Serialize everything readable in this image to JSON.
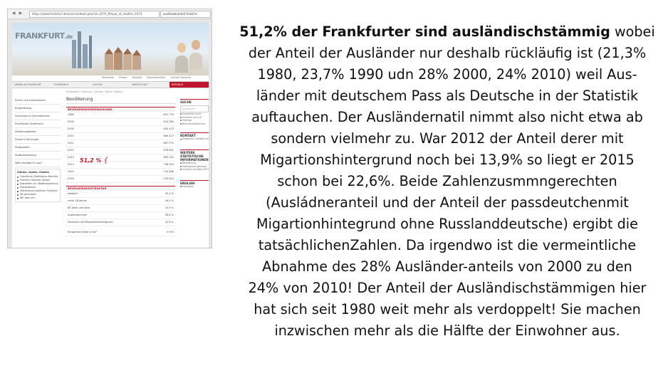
{
  "browser": {
    "url": "https://www.frankfurt.de/sixcms/detail.php?id=2076_ffmpar_id_stadtrt=1074",
    "search_tab": "ausländeranteil frankf ▾",
    "nav_back": "◀",
    "nav_forward": "▶"
  },
  "site": {
    "logo_text": "FRANKFURT",
    "logo_suffix": ".de",
    "top_links": [
      "Startseite",
      "Presse",
      "Kontakt",
      "Barrierefreiheit",
      "Leichte Sprache"
    ],
    "main_nav": [
      {
        "label": "LEBEN IN FRANKFURT",
        "active": false
      },
      {
        "label": "TOURISMUS",
        "active": false
      },
      {
        "label": "KULTUR",
        "active": false
      },
      {
        "label": "WIRTSCHAFT",
        "active": false
      },
      {
        "label": "RATHAUS",
        "active": true
      }
    ],
    "breadcrumb": "Startseite » Rathaus » Zahlen, Daten, Fakten",
    "left_nav": [
      "Ämter und Institutionen",
      "Bürgerdialog",
      "Formulare & Onlinedienste",
      "Frankfurter Stadtrecht",
      "Stellenangebote",
      "Preise & Ehrungen",
      "Stadtpolitik",
      "Stadtverwaltung",
      "Was erledige ich wo?"
    ],
    "left_sub": {
      "title": "Zahlen, Daten, Fakten",
      "items": [
        "Frankfurter Statistische Berichte",
        "Frankfurt Statistik Aktuell",
        "Statistiken zur Stadtentwicklung",
        "Publikationen",
        "Statistisches Jahrbuch Frankfurt am Main",
        "Strukturdaten",
        "Wir über uns"
      ]
    },
    "content": {
      "title": "Bevölkerung",
      "section1_title": "BEVÖLKERUNGSENTWICKLUNG",
      "population": [
        {
          "year": "1980",
          "value": "631 779"
        },
        {
          "year": "2000",
          "value": "624 380"
        },
        {
          "year": "2005",
          "value": "630 423"
        },
        {
          "year": "2010",
          "value": "660 427"
        },
        {
          "year": "2011",
          "value": "667 575"
        },
        {
          "year": "2012",
          "value": "678 691"
        },
        {
          "year": "2013",
          "value": "693 342"
        },
        {
          "year": "2014",
          "value": "708 543"
        },
        {
          "year": "2015",
          "value": "724 486"
        },
        {
          "year": "2016",
          "value": "729 624"
        }
      ],
      "section2_title": "BEVÖLKERUNGSSTRUKTUR",
      "structure": [
        {
          "label": "weiblich",
          "value": "50,4 %"
        },
        {
          "label": "unter 18 Jahren",
          "value": "16,4 %"
        },
        {
          "label": "65 Jahre und älter",
          "value": "15,9 %"
        },
        {
          "label": "Ausländerinnen",
          "value": "28,6 %"
        },
        {
          "label": "Deutsche mit Migrationshintergrund",
          "value": "22,6 %"
        }
      ],
      "density_label": "Einwohner/innen je km²",
      "density_value": "2 919",
      "annotation": "51,2 %",
      "annotation_brace": "{"
    },
    "right_col": {
      "search_title": "SUCHE",
      "search_placeholder": "Suchbegriff",
      "search_items": [
        "Erweiterte Suche",
        "Frankfurt von A-Z",
        "Sitemap",
        "Branchenverzeichnis"
      ],
      "contact_title": "KONTAKT",
      "contact_items": [
        "Bürgeramt, Statistik und Wahlen"
      ],
      "more_title": "WEITERE STATISTISCHE INFORMATIONEN",
      "more_items": [
        "Bevölkerung",
        "Statistisches Jahrbuch",
        "Frankfurt am Main 2017 (pdf, 12 MB)"
      ],
      "english_title": "ENGLISH",
      "english_items": [
        "Population"
      ]
    }
  },
  "commentary": {
    "headline": "51,2% der Frankfurter sind ausländischstämmig",
    "body": " wobei\nder Anteil der Ausländer nur deshalb rückläufig ist (21,3%\n1980, 23,7% 1990 udn 28% 2000, 24% 2010) weil Aus-\nländer mit deutschem Pass als Deutsche in der Statistik\nauftauchen. Der Ausländernatil nimmt also nicht etwa ab\nsondern vielmehr zu. War 2012 der Anteil derer mit\nMigartionshintergrund noch bei 13,9% so liegt er 2015\nschon bei 22,6%.  Beide Zahlenzusmmngerechten\n(Ausládneranteil und der Anteil der passdeutchenmit\nMigartionhintegrund ohne Russlanddeutsche) ergibt die\ntatsächlichenZahlen. Da  irgendwo ist die vermeintliche\nAbnahme des 28% Ausländer-anteils von 2000 zu den\n24% von 2010! Der Anteil der Ausländischstämmigen hier\nhat sich seit 1980 weit mehr als verdoppelt! Sie machen\ninzwischen mehr als die Hälfte der Einwohner aus."
  }
}
